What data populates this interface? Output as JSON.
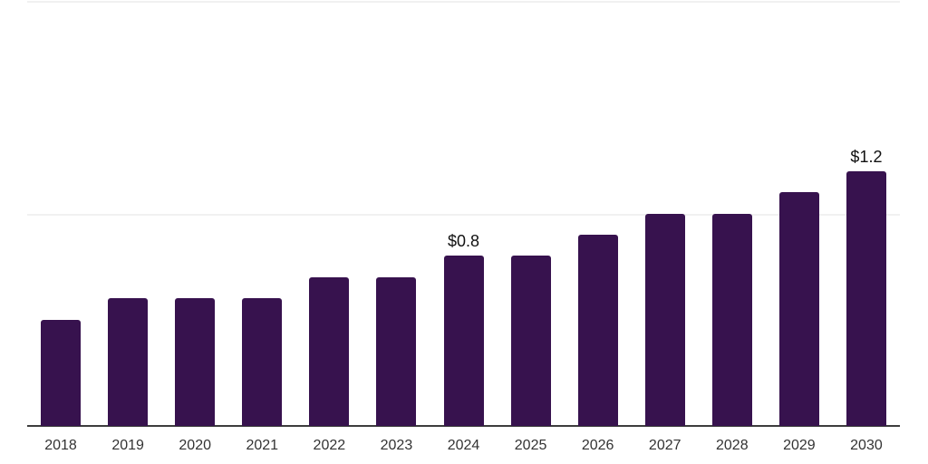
{
  "chart_data": {
    "type": "bar",
    "title": "",
    "xlabel": "",
    "ylabel": "",
    "categories": [
      "2018",
      "2019",
      "2020",
      "2021",
      "2022",
      "2023",
      "2024",
      "2025",
      "2026",
      "2027",
      "2028",
      "2029",
      "2030"
    ],
    "values": [
      0.5,
      0.6,
      0.6,
      0.6,
      0.7,
      0.7,
      0.8,
      0.8,
      0.9,
      1.0,
      1.0,
      1.1,
      1.2
    ],
    "data_labels": [
      {
        "index": 6,
        "text": "$0.8"
      },
      {
        "index": 12,
        "text": "$1.2"
      }
    ],
    "ylim": [
      0,
      2.0
    ],
    "gridline_values": [
      1.0,
      2.0
    ],
    "grid": "horizontal-only",
    "legend": "none",
    "bar_color": "#37124E",
    "gridline_color": "#f1f1f1",
    "axis_line_color": "#3d3d3d",
    "tick_label_color": "#333333",
    "data_label_color": "#111111"
  }
}
